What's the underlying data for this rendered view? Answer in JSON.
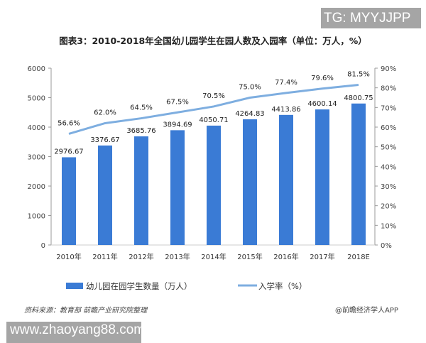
{
  "watermark_top": "TG: MYYJJPP",
  "watermark_bottom": "www.zhaoyang88.com",
  "source": "资料来源：教育部 前瞻产业研究院整理",
  "credit": "@前瞻经济学人APP",
  "chart_data": {
    "type": "bar+line",
    "title": "图表3：2010-2018年全国幼儿园学生在园人数及入园率（单位：万人，%）",
    "categories": [
      "2010年",
      "2011年",
      "2012年",
      "2013年",
      "2014年",
      "2015年",
      "2016年",
      "2017年",
      "2018E"
    ],
    "series": [
      {
        "name": "幼儿园在园学生数量（万人）",
        "type": "bar",
        "axis": "left",
        "color": "#3a7bd5",
        "values": [
          2976.67,
          3376.67,
          3685.76,
          3894.69,
          4050.71,
          4264.83,
          4413.86,
          4600.14,
          4800.75
        ],
        "labels": [
          "2976.67",
          "3376.67",
          "3685.76",
          "3894.69",
          "4050.71",
          "4264.83",
          "4413.86",
          "4600.14",
          "4800.75"
        ]
      },
      {
        "name": "入学率（%）",
        "type": "line",
        "axis": "right",
        "color": "#7eaee0",
        "values": [
          56.6,
          62.0,
          64.5,
          67.5,
          70.5,
          75.0,
          77.4,
          79.6,
          81.5
        ],
        "labels": [
          "56.6%",
          "62.0%",
          "64.5%",
          "67.5%",
          "70.5%",
          "75.0%",
          "77.4%",
          "79.6%",
          "81.5%"
        ]
      }
    ],
    "y_left": {
      "range": [
        0,
        6000
      ],
      "ticks": [
        "0",
        "1000",
        "2000",
        "3000",
        "4000",
        "5000",
        "6000"
      ]
    },
    "y_right": {
      "range": [
        0,
        90
      ],
      "ticks": [
        "0%",
        "10%",
        "20%",
        "30%",
        "40%",
        "50%",
        "60%",
        "70%",
        "80%",
        "90%"
      ]
    },
    "legend": "bottom",
    "grid": false
  }
}
